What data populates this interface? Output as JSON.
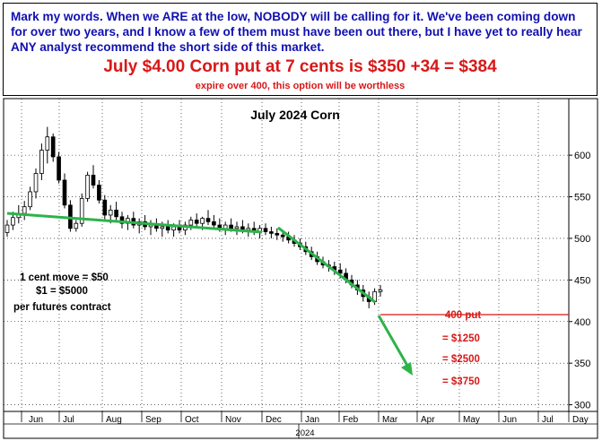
{
  "header": {
    "commentary": "Mark my words. When we ARE at the low, NOBODY will be calling for it. We've been coming down for over two years, and I know a few of them must have been out there, but I have yet to really hear ANY analyst recommend the short side of this market.",
    "headline": "July $4.00 Corn put at 7 cents is $350 +34 = $384",
    "subline": "expire over 400, this option will be worthless"
  },
  "annotations": {
    "cent_move": "1 cent move = $50",
    "dollar": "$1 = $5000",
    "per_contract": "per futures contract",
    "put_label": "400 put",
    "value_1": "= $1250",
    "value_2": "= $2500",
    "value_3": "= $3750"
  },
  "colors": {
    "commentary": "#1010b0",
    "headline": "#d81818",
    "candles": "#000000",
    "trendline": "#2db34a",
    "put_line": "#d81818"
  },
  "chart_data": {
    "type": "candlestick",
    "title": "July 2024 Corn",
    "xlabel": "",
    "ylabel": "",
    "ylim": [
      292,
      668
    ],
    "y_ticks": [
      300,
      350,
      400,
      450,
      500,
      550,
      600
    ],
    "x_tick_labels": [
      "Jun",
      "Jul",
      "Aug",
      "Sep",
      "Oct",
      "Nov",
      "Dec",
      "Jan",
      "Feb",
      "Mar",
      "Apr",
      "May",
      "Jun",
      "Jul",
      "Day"
    ],
    "year_label": "2024",
    "grid": true,
    "series": [
      {
        "values": [
          [
            507,
            522,
            502,
            516
          ],
          [
            516,
            532,
            510,
            525
          ],
          [
            525,
            540,
            518,
            530
          ],
          [
            530,
            545,
            522,
            538
          ],
          [
            538,
            562,
            534,
            556
          ],
          [
            556,
            584,
            548,
            578
          ],
          [
            578,
            614,
            570,
            606
          ],
          [
            606,
            634,
            590,
            622
          ],
          [
            622,
            626,
            592,
            598
          ],
          [
            598,
            604,
            566,
            570
          ],
          [
            570,
            578,
            536,
            540
          ],
          [
            540,
            546,
            508,
            512
          ],
          [
            512,
            522,
            508,
            518
          ],
          [
            518,
            554,
            514,
            548
          ],
          [
            548,
            580,
            544,
            576
          ],
          [
            576,
            588,
            560,
            564
          ],
          [
            564,
            570,
            542,
            546
          ],
          [
            546,
            552,
            522,
            528
          ],
          [
            528,
            540,
            518,
            534
          ],
          [
            534,
            544,
            522,
            526
          ],
          [
            526,
            532,
            512,
            518
          ],
          [
            518,
            528,
            510,
            524
          ],
          [
            524,
            532,
            512,
            516
          ],
          [
            516,
            524,
            506,
            520
          ],
          [
            520,
            528,
            510,
            514
          ],
          [
            514,
            522,
            504,
            516
          ],
          [
            516,
            524,
            508,
            512
          ],
          [
            512,
            520,
            502,
            514
          ],
          [
            514,
            522,
            506,
            510
          ],
          [
            510,
            518,
            502,
            514
          ],
          [
            514,
            522,
            506,
            510
          ],
          [
            510,
            520,
            504,
            516
          ],
          [
            516,
            526,
            510,
            522
          ],
          [
            522,
            530,
            514,
            518
          ],
          [
            518,
            526,
            510,
            524
          ],
          [
            524,
            534,
            516,
            520
          ],
          [
            520,
            528,
            512,
            516
          ],
          [
            516,
            524,
            508,
            512
          ],
          [
            512,
            520,
            504,
            516
          ],
          [
            516,
            524,
            508,
            512
          ],
          [
            512,
            520,
            504,
            514
          ],
          [
            514,
            522,
            506,
            510
          ],
          [
            510,
            518,
            502,
            512
          ],
          [
            512,
            520,
            504,
            508
          ],
          [
            508,
            516,
            500,
            512
          ],
          [
            512,
            518,
            504,
            508
          ],
          [
            508,
            514,
            500,
            506
          ],
          [
            506,
            512,
            498,
            504
          ],
          [
            504,
            510,
            496,
            502
          ],
          [
            502,
            508,
            494,
            498
          ],
          [
            498,
            504,
            490,
            494
          ],
          [
            494,
            500,
            486,
            490
          ],
          [
            490,
            496,
            480,
            484
          ],
          [
            484,
            490,
            474,
            478
          ],
          [
            478,
            484,
            468,
            472
          ],
          [
            472,
            478,
            464,
            468
          ],
          [
            468,
            474,
            460,
            466
          ],
          [
            466,
            472,
            456,
            462
          ],
          [
            462,
            470,
            452,
            458
          ],
          [
            458,
            464,
            446,
            450
          ],
          [
            450,
            456,
            440,
            444
          ],
          [
            444,
            450,
            432,
            438
          ],
          [
            438,
            444,
            424,
            430
          ],
          [
            430,
            436,
            416,
            424
          ],
          [
            424,
            440,
            420,
            436
          ],
          [
            436,
            444,
            430,
            438
          ]
        ]
      }
    ]
  }
}
